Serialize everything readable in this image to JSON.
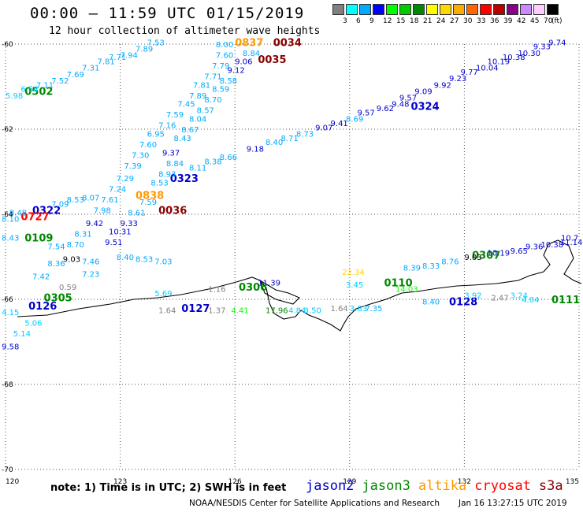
{
  "header": {
    "title": "00:00 – 11:59 UTC 01/15/2019",
    "subtitle": "12 hour collection of altimeter wave heights"
  },
  "colorbar": {
    "labels": [
      "3",
      "6",
      "9",
      "12",
      "15",
      "18",
      "21",
      "24",
      "27",
      "30",
      "33",
      "36",
      "39",
      "42",
      "45",
      "70"
    ],
    "unit": "(ft)",
    "colors": [
      "#808080",
      "#00ffff",
      "#00aaff",
      "#0000ff",
      "#00ff00",
      "#00cc00",
      "#008800",
      "#ffff00",
      "#ffd700",
      "#ffaa00",
      "#ff6600",
      "#ff0000",
      "#bb0000",
      "#880088",
      "#cc88ff",
      "#ffccff",
      "#000000"
    ]
  },
  "axes": {
    "lat_labels": [
      "-60",
      "-62",
      "-64",
      "-66",
      "-68",
      "-70"
    ],
    "lon_labels": [
      "120",
      "123",
      "126",
      "129",
      "132",
      "135"
    ]
  },
  "passes": [
    {
      "label": "0502",
      "lon": 120.5,
      "lat": -61.1,
      "color": "#008800"
    },
    {
      "label": "0322",
      "lon": 120.7,
      "lat": -63.9,
      "color": "#0000cc"
    },
    {
      "label": "0727",
      "lon": 120.4,
      "lat": -64.05,
      "color": "#ff0000"
    },
    {
      "label": "0109",
      "lon": 120.5,
      "lat": -64.55,
      "color": "#008800"
    },
    {
      "label": "0305",
      "lon": 121.0,
      "lat": -65.95,
      "color": "#008800"
    },
    {
      "label": "0126",
      "lon": 120.6,
      "lat": -66.15,
      "color": "#0000cc"
    },
    {
      "label": "0036",
      "lon": 124.0,
      "lat": -63.9,
      "color": "#880000"
    },
    {
      "label": "0323",
      "lon": 124.3,
      "lat": -63.15,
      "color": "#0000cc"
    },
    {
      "label": "0838",
      "lon": 123.4,
      "lat": -63.55,
      "color": "#ff9900"
    },
    {
      "label": "0127",
      "lon": 124.6,
      "lat": -66.2,
      "color": "#0000cc"
    },
    {
      "label": "0306",
      "lon": 126.1,
      "lat": -65.7,
      "color": "#008800"
    },
    {
      "label": "0837",
      "lon": 126.0,
      "lat": -59.95,
      "color": "#ff9900"
    },
    {
      "label": "0034",
      "lon": 127.0,
      "lat": -59.95,
      "color": "#880000"
    },
    {
      "label": "0035",
      "lon": 126.6,
      "lat": -60.35,
      "color": "#880000"
    },
    {
      "label": "0324",
      "lon": 130.6,
      "lat": -61.45,
      "color": "#0000cc"
    },
    {
      "label": "0110",
      "lon": 129.9,
      "lat": -65.6,
      "color": "#008800"
    },
    {
      "label": "0128",
      "lon": 131.6,
      "lat": -66.05,
      "color": "#0000cc"
    },
    {
      "label": "0307",
      "lon": 132.2,
      "lat": -64.95,
      "color": "#008800"
    },
    {
      "label": "0111",
      "lon": 134.5,
      "lat": -66.0,
      "color": "#008800"
    }
  ],
  "observations": [
    {
      "v": "7.53",
      "lon": 123.7,
      "lat": -59.95,
      "color": "#00aaff"
    },
    {
      "v": "7.89",
      "lon": 123.4,
      "lat": -60.1,
      "color": "#00aaff"
    },
    {
      "v": "7.94",
      "lon": 123.0,
      "lat": -60.25,
      "color": "#00aaff"
    },
    {
      "v": "7.71",
      "lon": 122.7,
      "lat": -60.3,
      "color": "#00aaff"
    },
    {
      "v": "7.81",
      "lon": 122.4,
      "lat": -60.4,
      "color": "#00aaff"
    },
    {
      "v": "7.31",
      "lon": 122.0,
      "lat": -60.55,
      "color": "#00aaff"
    },
    {
      "v": "7.69",
      "lon": 121.6,
      "lat": -60.7,
      "color": "#00aaff"
    },
    {
      "v": "7.52",
      "lon": 121.2,
      "lat": -60.85,
      "color": "#00aaff"
    },
    {
      "v": "7.11",
      "lon": 120.8,
      "lat": -60.95,
      "color": "#00aaff"
    },
    {
      "v": "6.54",
      "lon": 120.4,
      "lat": -61.05,
      "color": "#00ccff"
    },
    {
      "v": "5.98",
      "lon": 120.0,
      "lat": -61.2,
      "color": "#00ccff"
    },
    {
      "v": "8.00",
      "lon": 125.5,
      "lat": -60.0,
      "color": "#00aaff"
    },
    {
      "v": "7.60",
      "lon": 125.5,
      "lat": -60.25,
      "color": "#00aaff"
    },
    {
      "v": "7.79",
      "lon": 125.4,
      "lat": -60.5,
      "color": "#00aaff"
    },
    {
      "v": "7.71",
      "lon": 125.2,
      "lat": -60.75,
      "color": "#00aaff"
    },
    {
      "v": "7.81",
      "lon": 124.9,
      "lat": -60.95,
      "color": "#00aaff"
    },
    {
      "v": "7.89",
      "lon": 124.8,
      "lat": -61.2,
      "color": "#00aaff"
    },
    {
      "v": "7.45",
      "lon": 124.5,
      "lat": -61.4,
      "color": "#00aaff"
    },
    {
      "v": "7.59",
      "lon": 124.2,
      "lat": -61.65,
      "color": "#00aaff"
    },
    {
      "v": "7.16",
      "lon": 124.0,
      "lat": -61.9,
      "color": "#00aaff"
    },
    {
      "v": "6.95",
      "lon": 123.7,
      "lat": -62.1,
      "color": "#00aaff"
    },
    {
      "v": "7.60",
      "lon": 123.5,
      "lat": -62.35,
      "color": "#00aaff"
    },
    {
      "v": "7.30",
      "lon": 123.3,
      "lat": -62.6,
      "color": "#00aaff"
    },
    {
      "v": "7.39",
      "lon": 123.1,
      "lat": -62.85,
      "color": "#00aaff"
    },
    {
      "v": "7.29",
      "lon": 122.9,
      "lat": -63.15,
      "color": "#00aaff"
    },
    {
      "v": "7.24",
      "lon": 122.7,
      "lat": -63.4,
      "color": "#00aaff"
    },
    {
      "v": "7.61",
      "lon": 122.5,
      "lat": -63.65,
      "color": "#00aaff"
    },
    {
      "v": "7.98",
      "lon": 122.3,
      "lat": -63.9,
      "color": "#00aaff"
    },
    {
      "v": "8.84",
      "lon": 126.2,
      "lat": -60.2,
      "color": "#00aaff"
    },
    {
      "v": "9.06",
      "lon": 126.0,
      "lat": -60.4,
      "color": "#0000cc"
    },
    {
      "v": "9.12",
      "lon": 125.8,
      "lat": -60.6,
      "color": "#0000cc"
    },
    {
      "v": "8.58",
      "lon": 125.6,
      "lat": -60.85,
      "color": "#00aaff"
    },
    {
      "v": "8.59",
      "lon": 125.4,
      "lat": -61.05,
      "color": "#00aaff"
    },
    {
      "v": "8.70",
      "lon": 125.2,
      "lat": -61.3,
      "color": "#00aaff"
    },
    {
      "v": "8.57",
      "lon": 125.0,
      "lat": -61.55,
      "color": "#00aaff"
    },
    {
      "v": "8.04",
      "lon": 124.8,
      "lat": -61.75,
      "color": "#00aaff"
    },
    {
      "v": "8.67",
      "lon": 124.6,
      "lat": -62.0,
      "color": "#00aaff"
    },
    {
      "v": "8.43",
      "lon": 124.4,
      "lat": -62.2,
      "color": "#00aaff"
    },
    {
      "v": "9.37",
      "lon": 124.1,
      "lat": -62.55,
      "color": "#0000cc"
    },
    {
      "v": "8.84",
      "lon": 124.2,
      "lat": -62.8,
      "color": "#00aaff"
    },
    {
      "v": "8.93",
      "lon": 124.0,
      "lat": -63.05,
      "color": "#00aaff"
    },
    {
      "v": "8.53",
      "lon": 123.8,
      "lat": -63.25,
      "color": "#00aaff"
    },
    {
      "v": "7.59",
      "lon": 123.5,
      "lat": -63.7,
      "color": "#00aaff"
    },
    {
      "v": "8.61",
      "lon": 123.2,
      "lat": -63.95,
      "color": "#00aaff"
    },
    {
      "v": "9.33",
      "lon": 123.0,
      "lat": -64.2,
      "color": "#0000cc"
    },
    {
      "v": "10.31",
      "lon": 122.7,
      "lat": -64.4,
      "color": "#0000cc"
    },
    {
      "v": "9.51",
      "lon": 122.6,
      "lat": -64.65,
      "color": "#0000cc"
    },
    {
      "v": "8.40",
      "lon": 122.9,
      "lat": -65.0,
      "color": "#00aaff"
    },
    {
      "v": "8.53",
      "lon": 123.4,
      "lat": -65.05,
      "color": "#00aaff"
    },
    {
      "v": "7.03",
      "lon": 123.9,
      "lat": -65.1,
      "color": "#00aaff"
    },
    {
      "v": "8.11",
      "lon": 124.8,
      "lat": -62.9,
      "color": "#00aaff"
    },
    {
      "v": "8.38",
      "lon": 125.2,
      "lat": -62.75,
      "color": "#00aaff"
    },
    {
      "v": "8.66",
      "lon": 125.6,
      "lat": -62.65,
      "color": "#00aaff"
    },
    {
      "v": "9.18",
      "lon": 126.3,
      "lat": -62.45,
      "color": "#0000cc"
    },
    {
      "v": "8.40",
      "lon": 126.8,
      "lat": -62.3,
      "color": "#00aaff"
    },
    {
      "v": "8.71",
      "lon": 127.2,
      "lat": -62.2,
      "color": "#00aaff"
    },
    {
      "v": "8.73",
      "lon": 127.6,
      "lat": -62.1,
      "color": "#00aaff"
    },
    {
      "v": "9.07",
      "lon": 128.1,
      "lat": -61.95,
      "color": "#0000cc"
    },
    {
      "v": "9.41",
      "lon": 128.5,
      "lat": -61.85,
      "color": "#0000cc"
    },
    {
      "v": "8.69",
      "lon": 128.9,
      "lat": -61.75,
      "color": "#00aaff"
    },
    {
      "v": "9.57",
      "lon": 129.2,
      "lat": -61.6,
      "color": "#0000cc"
    },
    {
      "v": "9.62",
      "lon": 129.7,
      "lat": -61.5,
      "color": "#0000cc"
    },
    {
      "v": "9.48",
      "lon": 130.1,
      "lat": -61.4,
      "color": "#0000cc"
    },
    {
      "v": "9.57",
      "lon": 130.3,
      "lat": -61.25,
      "color": "#0000cc"
    },
    {
      "v": "9.09",
      "lon": 130.7,
      "lat": -61.1,
      "color": "#0000cc"
    },
    {
      "v": "9.92",
      "lon": 131.2,
      "lat": -60.95,
      "color": "#0000cc"
    },
    {
      "v": "9.23",
      "lon": 131.6,
      "lat": -60.8,
      "color": "#0000cc"
    },
    {
      "v": "9.77",
      "lon": 131.9,
      "lat": -60.65,
      "color": "#0000cc"
    },
    {
      "v": "10.04",
      "lon": 132.3,
      "lat": -60.55,
      "color": "#0000cc"
    },
    {
      "v": "10.19",
      "lon": 132.6,
      "lat": -60.4,
      "color": "#0000cc"
    },
    {
      "v": "10.38",
      "lon": 133.0,
      "lat": -60.3,
      "color": "#0000cc"
    },
    {
      "v": "10.30",
      "lon": 133.4,
      "lat": -60.2,
      "color": "#0000cc"
    },
    {
      "v": "9.33",
      "lon": 133.8,
      "lat": -60.05,
      "color": "#0000cc"
    },
    {
      "v": "9.74",
      "lon": 134.2,
      "lat": -59.95,
      "color": "#0000cc"
    },
    {
      "v": "8.53",
      "lon": 121.6,
      "lat": -63.65,
      "color": "#00aaff"
    },
    {
      "v": "8.07",
      "lon": 122.0,
      "lat": -63.6,
      "color": "#00aaff"
    },
    {
      "v": "7.09",
      "lon": 121.2,
      "lat": -63.75,
      "color": "#00aaff"
    },
    {
      "v": "8.48",
      "lon": 120.1,
      "lat": -63.95,
      "color": "#00aaff"
    },
    {
      "v": "8.10",
      "lon": 119.9,
      "lat": -64.1,
      "color": "#00aaff"
    },
    {
      "v": "9.42",
      "lon": 122.1,
      "lat": -64.2,
      "color": "#0000cc"
    },
    {
      "v": "8.31",
      "lon": 121.8,
      "lat": -64.45,
      "color": "#00aaff"
    },
    {
      "v": "8.70",
      "lon": 121.6,
      "lat": -64.7,
      "color": "#00aaff"
    },
    {
      "v": "8.43",
      "lon": 119.9,
      "lat": -64.55,
      "color": "#00aaff"
    },
    {
      "v": "7.54",
      "lon": 121.1,
      "lat": -64.75,
      "color": "#00aaff"
    },
    {
      "v": "9.03",
      "lon": 121.5,
      "lat": -65.05,
      "color": "#000000"
    },
    {
      "v": "8.36",
      "lon": 121.1,
      "lat": -65.15,
      "color": "#00aaff"
    },
    {
      "v": "7.42",
      "lon": 120.7,
      "lat": -65.45,
      "color": "#00aaff"
    },
    {
      "v": "7.46",
      "lon": 122.0,
      "lat": -65.1,
      "color": "#00aaff"
    },
    {
      "v": "7.23",
      "lon": 122.0,
      "lat": -65.4,
      "color": "#00aaff"
    },
    {
      "v": "0.59",
      "lon": 121.4,
      "lat": -65.7,
      "color": "#808080"
    },
    {
      "v": "5.69",
      "lon": 123.9,
      "lat": -65.85,
      "color": "#00ccff"
    },
    {
      "v": "1.16",
      "lon": 125.3,
      "lat": -65.75,
      "color": "#808080"
    },
    {
      "v": "11.39",
      "lon": 126.6,
      "lat": -65.6,
      "color": "#0000cc"
    },
    {
      "v": "1.64",
      "lon": 124.0,
      "lat": -66.25,
      "color": "#808080"
    },
    {
      "v": "1.37",
      "lon": 125.3,
      "lat": -66.25,
      "color": "#808080"
    },
    {
      "v": "4.41",
      "lon": 125.9,
      "lat": -66.25,
      "color": "#00ff00"
    },
    {
      "v": "17.96",
      "lon": 126.8,
      "lat": -66.25,
      "color": "#008800"
    },
    {
      "v": "4.84",
      "lon": 127.4,
      "lat": -66.25,
      "color": "#00ccff"
    },
    {
      "v": "3.50",
      "lon": 127.8,
      "lat": -66.25,
      "color": "#00ccff"
    },
    {
      "v": "1.64",
      "lon": 128.5,
      "lat": -66.2,
      "color": "#808080"
    },
    {
      "v": "3.83",
      "lon": 129.0,
      "lat": -66.2,
      "color": "#00ccff"
    },
    {
      "v": "7.35",
      "lon": 129.4,
      "lat": -66.2,
      "color": "#00aaff"
    },
    {
      "v": "22.34",
      "lon": 128.8,
      "lat": -65.35,
      "color": "#ffd700"
    },
    {
      "v": "3.45",
      "lon": 128.9,
      "lat": -65.65,
      "color": "#00ccff"
    },
    {
      "v": "14.03",
      "lon": 130.2,
      "lat": -65.75,
      "color": "#00ff00"
    },
    {
      "v": "8.39",
      "lon": 130.4,
      "lat": -65.25,
      "color": "#00aaff"
    },
    {
      "v": "8.33",
      "lon": 130.9,
      "lat": -65.2,
      "color": "#00aaff"
    },
    {
      "v": "8.76",
      "lon": 131.4,
      "lat": -65.1,
      "color": "#00aaff"
    },
    {
      "v": "9.03",
      "lon": 132.0,
      "lat": -65.0,
      "color": "#000000"
    },
    {
      "v": "10.19",
      "lon": 132.6,
      "lat": -64.9,
      "color": "#0000cc"
    },
    {
      "v": "9.65",
      "lon": 133.2,
      "lat": -64.85,
      "color": "#0000cc"
    },
    {
      "v": "9.36",
      "lon": 133.6,
      "lat": -64.75,
      "color": "#0000cc"
    },
    {
      "v": "10.38",
      "lon": 134.0,
      "lat": -64.7,
      "color": "#0000cc"
    },
    {
      "v": "11.14",
      "lon": 134.5,
      "lat": -64.65,
      "color": "#0000cc"
    },
    {
      "v": "10.7",
      "lon": 134.9,
      "lat": -64.55,
      "color": "#0000cc"
    },
    {
      "v": "8.40",
      "lon": 130.9,
      "lat": -66.05,
      "color": "#00aaff"
    },
    {
      "v": "3.92",
      "lon": 132.0,
      "lat": -65.9,
      "color": "#00ccff"
    },
    {
      "v": "2.47",
      "lon": 132.7,
      "lat": -65.95,
      "color": "#808080"
    },
    {
      "v": "3.24",
      "lon": 133.2,
      "lat": -65.9,
      "color": "#00ccff"
    },
    {
      "v": "4.04",
      "lon": 133.5,
      "lat": -66.0,
      "color": "#00ccff"
    },
    {
      "v": "4.15",
      "lon": 119.9,
      "lat": -66.3,
      "color": "#00ccff"
    },
    {
      "v": "5.06",
      "lon": 120.5,
      "lat": -66.55,
      "color": "#00ccff"
    },
    {
      "v": "5.14",
      "lon": 120.2,
      "lat": -66.8,
      "color": "#00ccff"
    },
    {
      "v": "9.58",
      "lon": 119.9,
      "lat": -67.1,
      "color": "#0000cc"
    }
  ],
  "footer": {
    "note": "note: 1) Time is in UTC; 2) SWH is in feet",
    "satellites": [
      {
        "name": "jason2",
        "color": "#0000cc"
      },
      {
        "name": "jason3",
        "color": "#008800"
      },
      {
        "name": "altika",
        "color": "#ff9900"
      },
      {
        "name": "cryosat",
        "color": "#ff0000"
      },
      {
        "name": "s3a",
        "color": "#880000"
      }
    ],
    "credit": "NOAA/NESDIS Center for Satellite Applications and Research",
    "timestamp": "Jan 16 13:27:15 UTC 2019"
  }
}
